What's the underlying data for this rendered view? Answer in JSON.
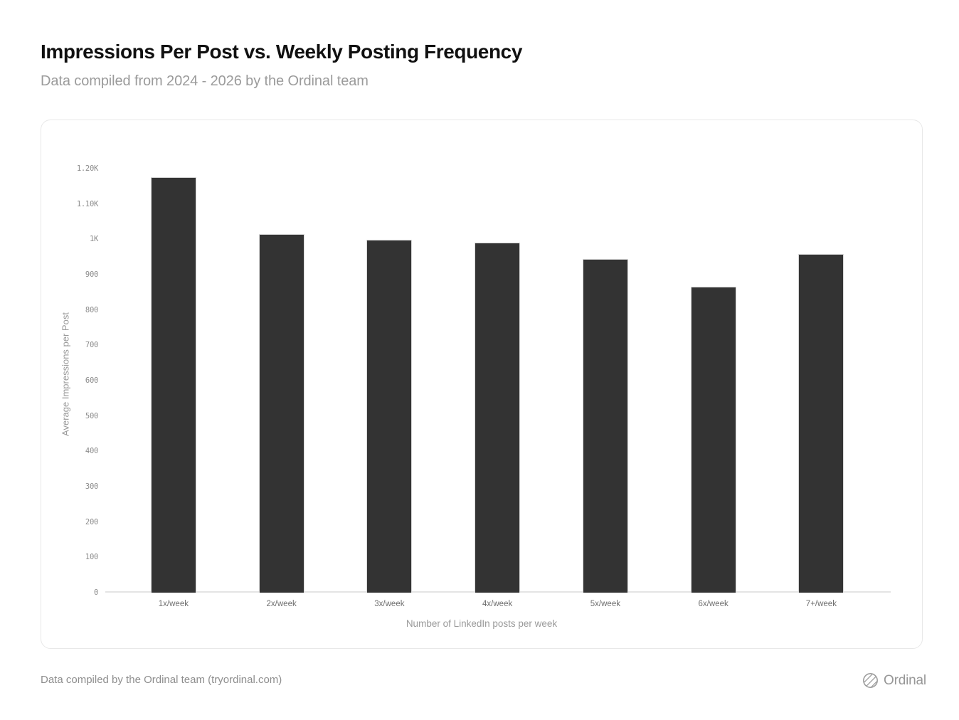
{
  "header": {
    "title": "Impressions Per Post vs. Weekly Posting Frequency",
    "subtitle": "Data compiled from 2024 - 2026 by the Ordinal team"
  },
  "chart_data": {
    "type": "bar",
    "title": "Impressions Per Post vs. Weekly Posting Frequency",
    "categories": [
      "1x/week",
      "2x/week",
      "3x/week",
      "4x/week",
      "5x/week",
      "6x/week",
      "7+/week"
    ],
    "values": [
      1175,
      1015,
      998,
      990,
      945,
      866,
      958
    ],
    "xlabel": "Number of LinkedIn posts per week",
    "ylabel": "Average Impressions per Post",
    "ylim": [
      0,
      1200
    ],
    "ytick_interval": 100,
    "yticks": [
      {
        "value": 0,
        "label": "0"
      },
      {
        "value": 100,
        "label": "100"
      },
      {
        "value": 200,
        "label": "200"
      },
      {
        "value": 300,
        "label": "300"
      },
      {
        "value": 400,
        "label": "400"
      },
      {
        "value": 500,
        "label": "500"
      },
      {
        "value": 600,
        "label": "600"
      },
      {
        "value": 700,
        "label": "700"
      },
      {
        "value": 800,
        "label": "800"
      },
      {
        "value": 900,
        "label": "900"
      },
      {
        "value": 1000,
        "label": "1K"
      },
      {
        "value": 1100,
        "label": "1.10K"
      },
      {
        "value": 1200,
        "label": "1.20K"
      }
    ],
    "grid": false,
    "legend": false,
    "bar_color": "#333333",
    "bar_stroke": "#d8d8d8"
  },
  "footer": {
    "credit": "Data compiled by the Ordinal team (tryordinal.com)",
    "brand": "Ordinal",
    "brand_icon": "hatched-sphere-icon"
  },
  "colors": {
    "title": "#101010",
    "subtitle": "#9b9b9b",
    "axis_line": "#e4e4e4",
    "tick_label": "#8c8c8c",
    "background": "#ffffff",
    "card_border": "#e8e8e8"
  }
}
